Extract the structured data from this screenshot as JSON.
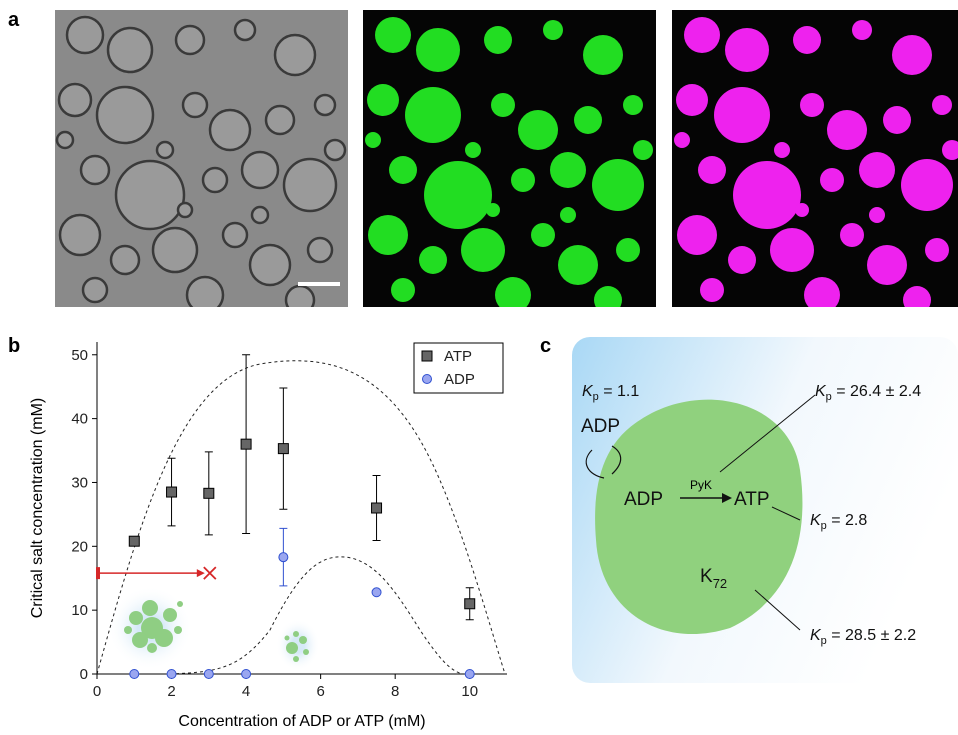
{
  "panel_labels": [
    "a",
    "b",
    "c"
  ],
  "chart_data": {
    "type": "scatter",
    "x_label": "Concentration of ADP or ATP (mM)",
    "y_label": "Critical salt concentration (mM)",
    "xlim": [
      0,
      11
    ],
    "ylim": [
      0,
      52
    ],
    "xticks": [
      0,
      2,
      4,
      6,
      8,
      10
    ],
    "yticks": [
      0,
      10,
      20,
      30,
      40,
      50
    ],
    "legend": "upper right",
    "series": [
      {
        "name": "ATP",
        "color": "#666666",
        "marker": "square",
        "x": [
          1,
          2,
          3,
          4,
          5,
          7.5,
          10
        ],
        "values": [
          20.8,
          28.5,
          28.3,
          36,
          35.3,
          26,
          11
        ],
        "errors": [
          null,
          5.3,
          6.5,
          14,
          9.5,
          5.1,
          2.5
        ]
      },
      {
        "name": "ADP",
        "color": "#9aa6f0",
        "marker": "circle",
        "x": [
          1,
          2,
          3,
          4,
          5,
          7.5,
          10
        ],
        "values": [
          0,
          0,
          0,
          0,
          18.3,
          12.8,
          0
        ],
        "errors": [
          null,
          null,
          null,
          null,
          4.5,
          null,
          null
        ]
      }
    ],
    "range_marker": {
      "color": "#d62728",
      "y": 15.8,
      "x": [
        0,
        3
      ]
    }
  },
  "diagram": {
    "kp_adp_out": {
      "symbol": "K",
      "sub": "p",
      "value": " = 1.1"
    },
    "adp_out": "ADP",
    "adp_in": "ADP",
    "enzyme": "PyK",
    "atp_in": "ATP",
    "k72": {
      "symbol": "K",
      "sub": "72"
    },
    "kp_atp": {
      "symbol": "K",
      "sub": "p",
      "value": " = 26.4 ± 2.4"
    },
    "kp_adp_in": {
      "symbol": "K",
      "sub": "p",
      "value": " = 2.8"
    },
    "kp_k72": {
      "symbol": "K",
      "sub": "p",
      "value": " = 28.5 ± 2.2"
    }
  }
}
